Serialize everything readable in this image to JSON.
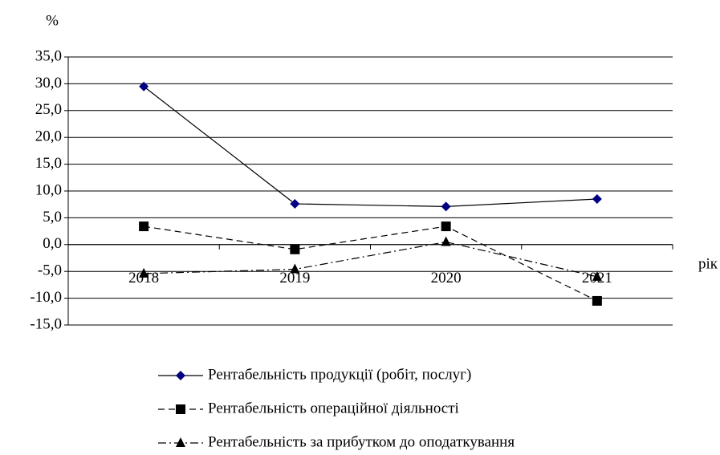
{
  "chart_data": {
    "type": "line",
    "y_label": "%",
    "x_label": "рік",
    "categories": [
      "2018",
      "2019",
      "2020",
      "2021"
    ],
    "series": [
      {
        "name": "Рентабельність продукції (робіт, послуг)",
        "color": "#000080",
        "line_color": "#000000",
        "line_style": "solid",
        "marker": "diamond",
        "values": [
          29.5,
          7.6,
          7.1,
          8.5
        ]
      },
      {
        "name": "Рентабельність операційної діяльності",
        "color": "#000000",
        "line_color": "#000000",
        "line_style": "dashed",
        "marker": "square",
        "values": [
          3.4,
          -0.9,
          3.4,
          -10.5
        ]
      },
      {
        "name": "Рентабельність за прибутком до оподаткування",
        "color": "#000000",
        "line_color": "#000000",
        "line_style": "dashdot",
        "marker": "triangle",
        "values": [
          -5.4,
          -4.6,
          0.5,
          -6.0
        ]
      }
    ],
    "ylim": [
      -15,
      35
    ],
    "yticks": [
      {
        "value": -15,
        "label": "-15,0"
      },
      {
        "value": -10,
        "label": "-10,0"
      },
      {
        "value": -5,
        "label": "-5,0"
      },
      {
        "value": 0,
        "label": "0,0"
      },
      {
        "value": 5,
        "label": "5,0"
      },
      {
        "value": 10,
        "label": "10,0"
      },
      {
        "value": 15,
        "label": "15,0"
      },
      {
        "value": 20,
        "label": "20,0"
      },
      {
        "value": 25,
        "label": "25,0"
      },
      {
        "value": 30,
        "label": "30,0"
      },
      {
        "value": 35,
        "label": "35,0"
      }
    ],
    "grid": true,
    "legend": "bottom"
  }
}
